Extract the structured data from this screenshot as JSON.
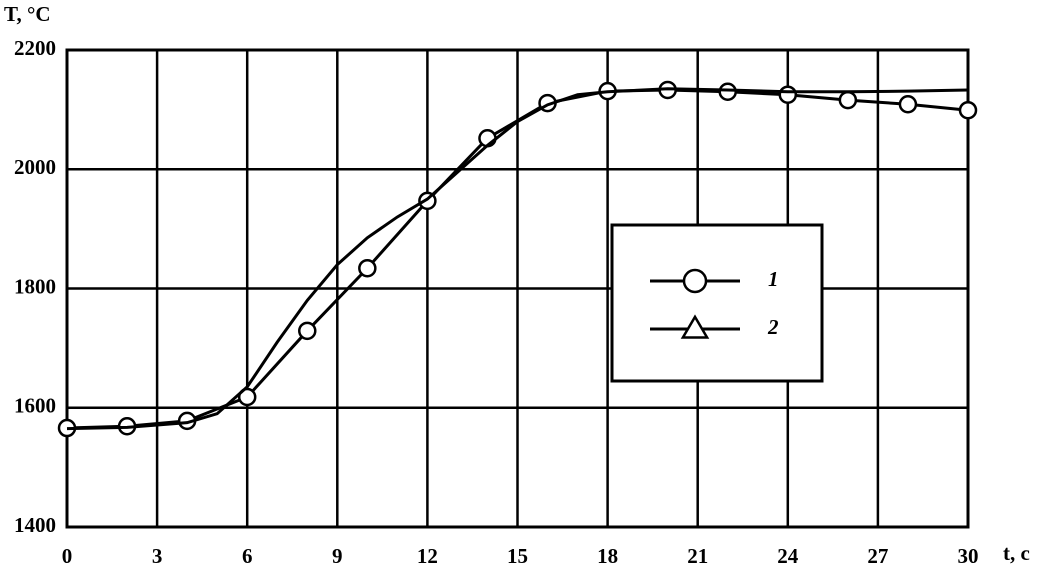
{
  "chart_data": {
    "type": "line",
    "y_label": "T, °C",
    "x_label": "t, c",
    "xlim": [
      0,
      30
    ],
    "xticks": [
      0,
      3,
      6,
      9,
      12,
      15,
      18,
      21,
      24,
      27,
      30
    ],
    "ylim": [
      1400,
      2200
    ],
    "yticks": [
      1400,
      1600,
      1800,
      2000,
      2200
    ],
    "grid": true,
    "legend": "right",
    "series": [
      {
        "name": "1",
        "color": "#000000",
        "marker": "circle",
        "x": [
          0,
          2,
          4,
          6,
          8,
          10,
          12,
          14,
          16,
          18,
          20,
          22,
          24,
          26,
          28,
          30
        ],
        "values": [
          1566,
          1569,
          1578,
          1618,
          1729,
          1834,
          1947,
          2052,
          2111,
          2131,
          2133,
          2130,
          2125,
          2116,
          2109,
          2099
        ]
      },
      {
        "name": "2",
        "color": "#000000",
        "marker": "triangle",
        "x": [
          0,
          2,
          4,
          5,
          6,
          7,
          8,
          9,
          10,
          11,
          12,
          13,
          14,
          15,
          16,
          17,
          18,
          20,
          22,
          24,
          26,
          28,
          30
        ],
        "values": [
          1565,
          1567,
          1575,
          1590,
          1635,
          1710,
          1780,
          1840,
          1885,
          1920,
          1950,
          1995,
          2040,
          2080,
          2108,
          2125,
          2130,
          2135,
          2133,
          2130,
          2130,
          2131,
          2133
        ]
      }
    ]
  }
}
